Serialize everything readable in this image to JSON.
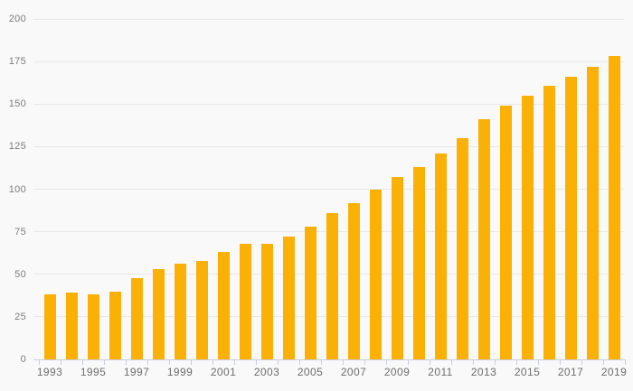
{
  "chart_data": {
    "type": "bar",
    "title": "",
    "xlabel": "",
    "ylabel": "",
    "categories": [
      "1993",
      "1994",
      "1995",
      "1996",
      "1997",
      "1998",
      "1999",
      "2000",
      "2001",
      "2002",
      "2003",
      "2004",
      "2005",
      "2006",
      "2007",
      "2008",
      "2009",
      "2010",
      "2011",
      "2012",
      "2013",
      "2014",
      "2015",
      "2016",
      "2017",
      "2018",
      "2019"
    ],
    "values": [
      38,
      39,
      38,
      40,
      48,
      53,
      56,
      58,
      63,
      68,
      68,
      72,
      78,
      86,
      92,
      100,
      107,
      113,
      121,
      130,
      141,
      149,
      155,
      161,
      166,
      172,
      178
    ],
    "x_tick_labels": [
      "1993",
      "1995",
      "1997",
      "1999",
      "2001",
      "2003",
      "2005",
      "2007",
      "2009",
      "2011",
      "2013",
      "2015",
      "2017",
      "2019"
    ],
    "y_tick_labels": [
      "0",
      "25",
      "50",
      "75",
      "100",
      "125",
      "150",
      "175",
      "200"
    ],
    "ylim": [
      0,
      200
    ],
    "y_tick_step": 25,
    "x_label_every": 2,
    "grid": "horizontal",
    "legend": "none",
    "colors": {
      "bar": "#FAB005",
      "background": "#f9f9f9",
      "gridline": "#e8e8e8",
      "axis_line": "#c7cede",
      "y_label": "#7c7c7c",
      "x_label": "#6d6d6d"
    }
  }
}
